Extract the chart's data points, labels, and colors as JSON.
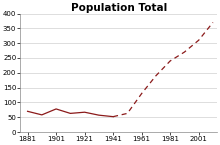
{
  "title": "Population Total",
  "years_solid": [
    1881,
    1891,
    1901,
    1911,
    1921,
    1931,
    1941
  ],
  "pop_solid": [
    70,
    58,
    78,
    63,
    67,
    57,
    52
  ],
  "years_dashed": [
    1941,
    1951,
    1961,
    1971,
    1981,
    1991,
    2001,
    2011
  ],
  "pop_dashed": [
    52,
    63,
    130,
    190,
    240,
    270,
    310,
    370
  ],
  "line_color": "#8B1A1A",
  "background_color": "#ffffff",
  "ylim": [
    0,
    400
  ],
  "yticks": [
    0,
    50,
    100,
    150,
    200,
    250,
    300,
    350,
    400
  ],
  "xticks": [
    1881,
    1901,
    1921,
    1941,
    1961,
    1981,
    2001
  ],
  "xlim": [
    1876,
    2014
  ],
  "title_fontsize": 7.5,
  "tick_fontsize": 5.0
}
